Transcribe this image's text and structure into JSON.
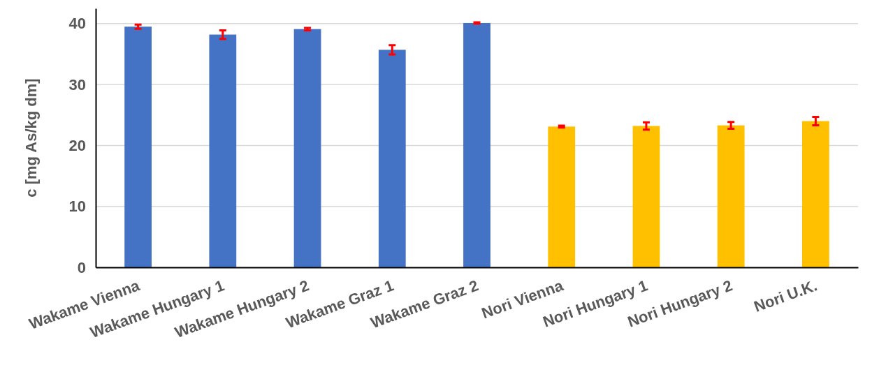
{
  "chart_data": {
    "type": "bar",
    "ylabel": "c [mg As/kg dm]",
    "categories": [
      "Wakame Vienna",
      "Wakame Hungary 1",
      "Wakame Hungary 2",
      "Wakame Graz 1",
      "Wakame Graz 2",
      "Nori Vienna",
      "Nori Hungary 1",
      "Nori Hungary 2",
      "Nori U.K."
    ],
    "values": [
      39.5,
      38.2,
      39.1,
      35.7,
      40.1,
      23.1,
      23.2,
      23.3,
      24.0
    ],
    "errors": [
      0.35,
      0.7,
      0.2,
      0.75,
      0.1,
      0.15,
      0.6,
      0.55,
      0.7
    ],
    "colors": [
      "#4472c4",
      "#4472c4",
      "#4472c4",
      "#4472c4",
      "#4472c4",
      "#ffc000",
      "#ffc000",
      "#ffc000",
      "#ffc000"
    ],
    "ylim": [
      0,
      42.5
    ],
    "yticks": [
      0,
      10,
      20,
      30,
      40
    ],
    "grid": "y"
  }
}
